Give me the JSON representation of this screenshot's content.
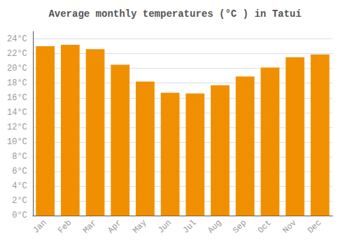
{
  "chart_data": {
    "type": "bar",
    "title": "Average monthly temperatures (°C ) in Tatuí",
    "categories": [
      "Jan",
      "Feb",
      "Mar",
      "Apr",
      "May",
      "Jun",
      "Jul",
      "Aug",
      "Sep",
      "Oct",
      "Nov",
      "Dec"
    ],
    "values": [
      23.0,
      23.2,
      22.6,
      20.5,
      18.2,
      16.7,
      16.6,
      17.7,
      18.9,
      20.1,
      21.5,
      21.9
    ],
    "color": "#F09000",
    "ylim": [
      0,
      25
    ],
    "yticks": [
      {
        "value": 0,
        "label": "0°C"
      },
      {
        "value": 2,
        "label": "2°C"
      },
      {
        "value": 4,
        "label": "4°C"
      },
      {
        "value": 6,
        "label": "6°C"
      },
      {
        "value": 8,
        "label": "8°C"
      },
      {
        "value": 10,
        "label": "10°C"
      },
      {
        "value": 12,
        "label": "12°C"
      },
      {
        "value": 14,
        "label": "14°C"
      },
      {
        "value": 16,
        "label": "16°C"
      },
      {
        "value": 18,
        "label": "18°C"
      },
      {
        "value": 20,
        "label": "20°C"
      },
      {
        "value": 22,
        "label": "22°C"
      },
      {
        "value": 24,
        "label": "24°C"
      }
    ],
    "grid": true
  }
}
